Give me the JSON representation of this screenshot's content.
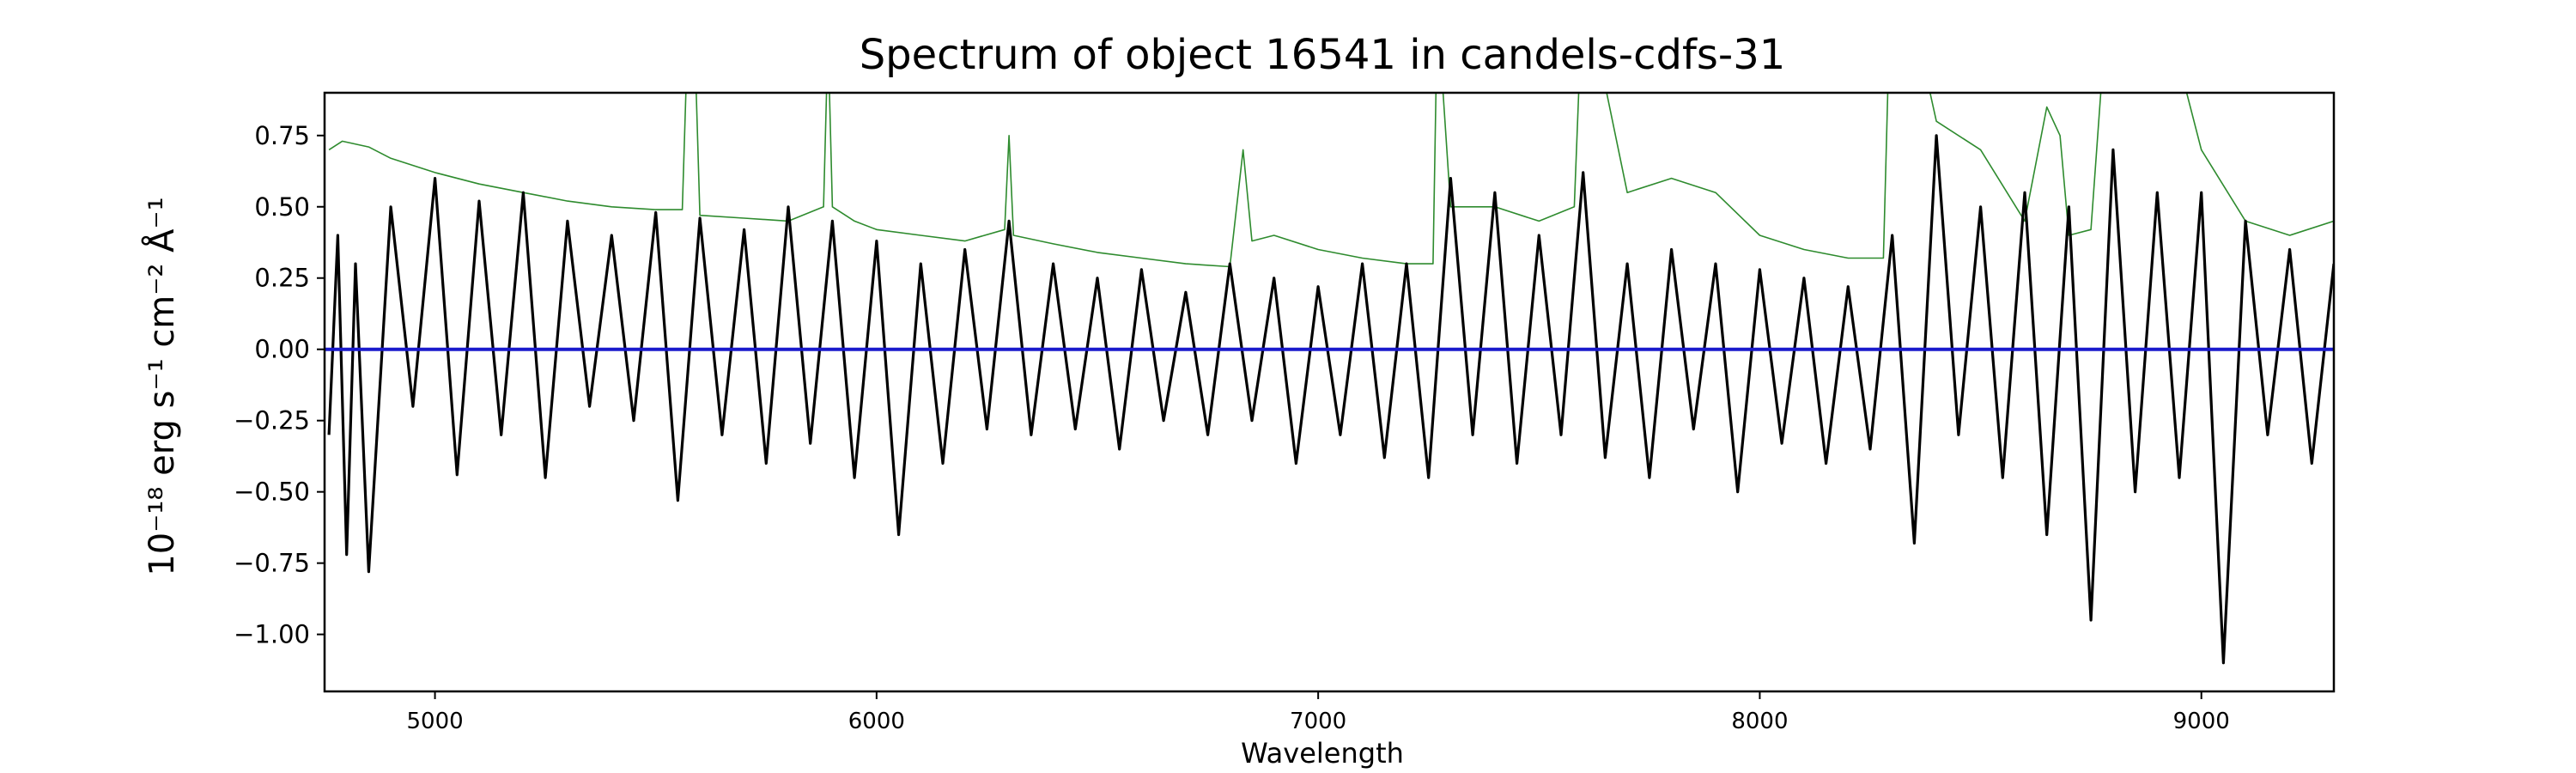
{
  "chart_data": {
    "type": "line",
    "title": "Spectrum of object 16541 in candels-cdfs-31",
    "xlabel": "Wavelength",
    "ylabel": "10⁻¹⁸ erg s⁻¹ cm⁻² Å⁻¹",
    "xlim": [
      4750,
      9300
    ],
    "ylim": [
      -1.2,
      0.9
    ],
    "xticks": [
      5000,
      6000,
      7000,
      8000,
      9000
    ],
    "xtick_labels": [
      "5000",
      "6000",
      "7000",
      "8000",
      "9000"
    ],
    "yticks": [
      0.75,
      0.5,
      0.25,
      0.0,
      -0.25,
      -0.5,
      -0.75,
      -1.0
    ],
    "ytick_labels": [
      "0.75",
      "0.50",
      "0.25",
      "0.00",
      "−0.25",
      "−0.50",
      "−0.75",
      "−1.00"
    ],
    "grid": false,
    "series": [
      {
        "color": "#2e8b2e",
        "role": "error",
        "x": [
          4760,
          4790,
          4850,
          4900,
          5000,
          5100,
          5200,
          5300,
          5400,
          5500,
          5560,
          5580,
          5600,
          5700,
          5800,
          5880,
          5890,
          5900,
          5950,
          6000,
          6100,
          6200,
          6290,
          6300,
          6310,
          6400,
          6500,
          6600,
          6700,
          6800,
          6830,
          6850,
          6900,
          7000,
          7100,
          7200,
          7260,
          7270,
          7300,
          7400,
          7500,
          7580,
          7600,
          7700,
          7800,
          7900,
          8000,
          8100,
          8200,
          8280,
          8300,
          8400,
          8500,
          8600,
          8650,
          8680,
          8700,
          8750,
          8800,
          8900,
          9000,
          9100,
          9200,
          9300
        ],
        "y": [
          0.7,
          0.73,
          0.71,
          0.67,
          0.62,
          0.58,
          0.55,
          0.52,
          0.5,
          0.49,
          0.49,
          1.5,
          0.47,
          0.46,
          0.45,
          0.5,
          1.1,
          0.5,
          0.45,
          0.42,
          0.4,
          0.38,
          0.42,
          0.75,
          0.4,
          0.37,
          0.34,
          0.32,
          0.3,
          0.29,
          0.7,
          0.38,
          0.4,
          0.35,
          0.32,
          0.3,
          0.3,
          1.2,
          0.5,
          0.5,
          0.45,
          0.5,
          1.3,
          0.55,
          0.6,
          0.55,
          0.4,
          0.35,
          0.32,
          0.32,
          1.5,
          0.8,
          0.7,
          0.45,
          0.85,
          0.75,
          0.4,
          0.42,
          1.5,
          1.3,
          0.7,
          0.45,
          0.4,
          0.45
        ]
      },
      {
        "color": "#000000",
        "role": "flux",
        "x": [
          4760,
          4780,
          4800,
          4820,
          4850,
          4900,
          4950,
          5000,
          5050,
          5100,
          5150,
          5200,
          5250,
          5300,
          5350,
          5400,
          5450,
          5500,
          5550,
          5600,
          5650,
          5700,
          5750,
          5800,
          5850,
          5900,
          5950,
          6000,
          6050,
          6100,
          6150,
          6200,
          6250,
          6300,
          6350,
          6400,
          6450,
          6500,
          6550,
          6600,
          6650,
          6700,
          6750,
          6800,
          6850,
          6900,
          6950,
          7000,
          7050,
          7100,
          7150,
          7200,
          7250,
          7300,
          7350,
          7400,
          7450,
          7500,
          7550,
          7600,
          7650,
          7700,
          7750,
          7800,
          7850,
          7900,
          7950,
          8000,
          8050,
          8100,
          8150,
          8200,
          8250,
          8300,
          8350,
          8400,
          8450,
          8500,
          8550,
          8600,
          8650,
          8700,
          8750,
          8800,
          8850,
          8900,
          8950,
          9000,
          9050,
          9100,
          9150,
          9200,
          9250,
          9300
        ],
        "y": [
          -0.3,
          0.4,
          -0.72,
          0.3,
          -0.78,
          0.5,
          -0.2,
          0.6,
          -0.44,
          0.52,
          -0.3,
          0.55,
          -0.45,
          0.45,
          -0.2,
          0.4,
          -0.25,
          0.48,
          -0.53,
          0.46,
          -0.3,
          0.42,
          -0.4,
          0.5,
          -0.33,
          0.45,
          -0.45,
          0.38,
          -0.65,
          0.3,
          -0.4,
          0.35,
          -0.28,
          0.45,
          -0.3,
          0.3,
          -0.28,
          0.25,
          -0.35,
          0.28,
          -0.25,
          0.2,
          -0.3,
          0.3,
          -0.25,
          0.25,
          -0.4,
          0.22,
          -0.3,
          0.3,
          -0.38,
          0.3,
          -0.45,
          0.6,
          -0.3,
          0.55,
          -0.4,
          0.4,
          -0.3,
          0.62,
          -0.38,
          0.3,
          -0.45,
          0.35,
          -0.28,
          0.3,
          -0.5,
          0.28,
          -0.33,
          0.25,
          -0.4,
          0.22,
          -0.35,
          0.4,
          -0.68,
          0.75,
          -0.3,
          0.5,
          -0.45,
          0.55,
          -0.65,
          0.5,
          -0.95,
          0.7,
          -0.5,
          0.55,
          -0.45,
          0.55,
          -1.1,
          0.45,
          -0.3,
          0.35,
          -0.4,
          0.3
        ]
      },
      {
        "color": "#1a1acc",
        "role": "zero",
        "x": [
          4750,
          9300
        ],
        "y": [
          0,
          0
        ]
      }
    ]
  }
}
